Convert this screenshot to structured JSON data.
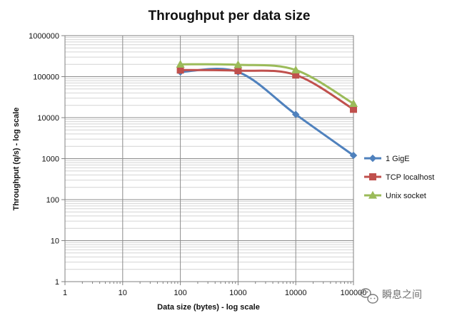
{
  "chart_data": {
    "type": "line",
    "title": "Throughput per data size",
    "xlabel": "Data size (bytes) - log scale",
    "ylabel": "Throughput (q/s) - log scale",
    "x_scale": "log",
    "y_scale": "log",
    "xlim": [
      1,
      100000
    ],
    "ylim": [
      1,
      1000000
    ],
    "x_ticks": [
      "1",
      "10",
      "100",
      "1000",
      "10000",
      "100000"
    ],
    "y_ticks": [
      "1",
      "10",
      "100",
      "1000",
      "10000",
      "100000",
      "1000000"
    ],
    "grid": true,
    "legend_position": "right",
    "x": [
      100,
      1000,
      10000,
      100000
    ],
    "series": [
      {
        "name": "1 GigE",
        "values": [
          130000,
          130000,
          12000,
          1200
        ],
        "color": "#4f81bd",
        "marker": "diamond"
      },
      {
        "name": "TCP localhost",
        "values": [
          145000,
          140000,
          110000,
          16000
        ],
        "color": "#c0504d",
        "marker": "square"
      },
      {
        "name": "Unix socket",
        "values": [
          200000,
          195000,
          145000,
          22000
        ],
        "color": "#9bbb59",
        "marker": "triangle"
      }
    ]
  },
  "watermark": {
    "text": "瞬息之间",
    "icon": "wechat-logo-icon"
  }
}
